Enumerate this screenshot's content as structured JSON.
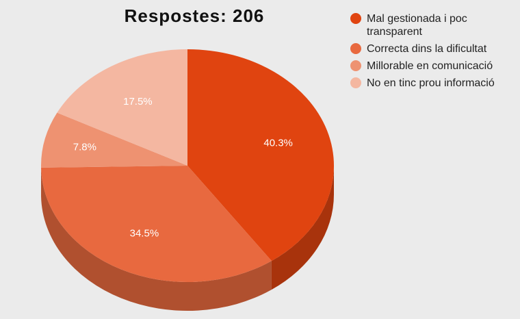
{
  "chart_data": {
    "type": "pie",
    "title": "Respostes: 206",
    "legend_position": "right",
    "slices": [
      {
        "name": "Mal gestionada i poc transparent",
        "value": 40.3,
        "label": "40.3%",
        "color": "#e04410",
        "side_color": "#a8330c"
      },
      {
        "name": "Correcta dins la dificultat",
        "value": 34.5,
        "label": "34.5%",
        "color": "#e8693f",
        "side_color": "#b0502f"
      },
      {
        "name": "Millorable en comunicació",
        "value": 7.8,
        "label": "7.8%",
        "color": "#ee9271",
        "side_color": "#b56f56"
      },
      {
        "name": "No en tinc prou informació",
        "value": 17.5,
        "label": "17.5%",
        "color": "#f4b7a1",
        "side_color": "#b98a79"
      }
    ]
  }
}
